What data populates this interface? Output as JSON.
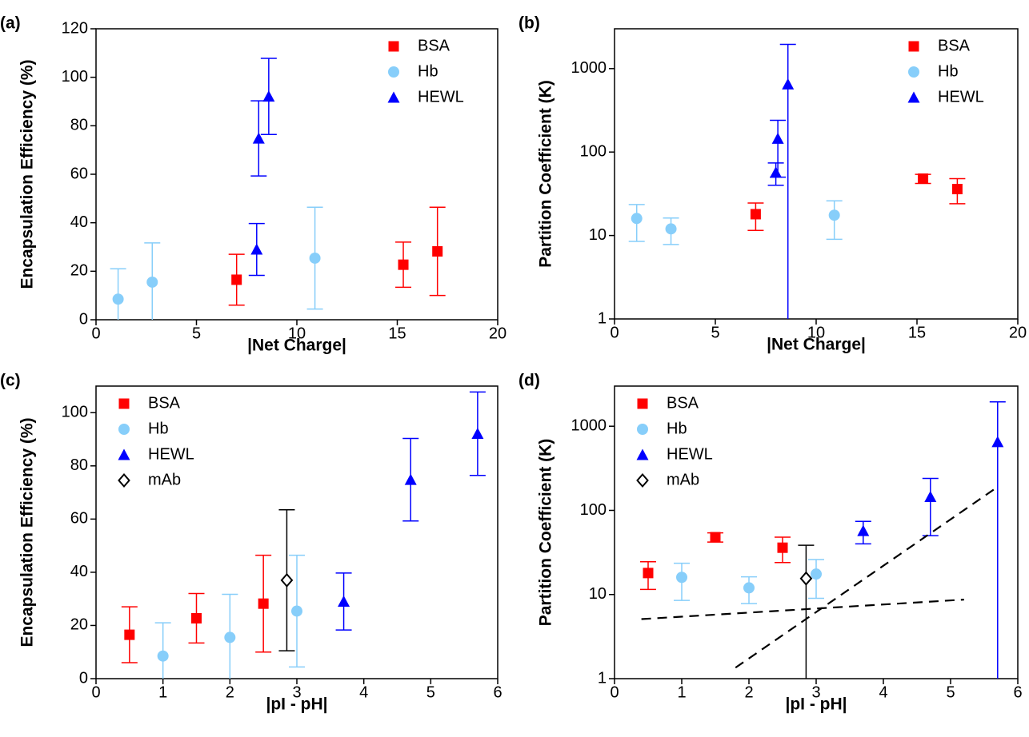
{
  "chart_data": [
    {
      "type": "scatter",
      "panel_label": "(a)",
      "x_label": "|Net Charge|",
      "y_label": "Encapsulation Efficiency (%)",
      "xlim": [
        0,
        20
      ],
      "xticks": [
        0,
        5,
        10,
        15,
        20
      ],
      "ylim": [
        0,
        120
      ],
      "yticks": [
        0,
        20,
        40,
        60,
        80,
        100,
        120
      ],
      "legend": "upper right",
      "series": [
        {
          "name": "BSA",
          "color": "#ff0000",
          "marker": "square",
          "x": [
            7.0,
            15.3,
            17.0
          ],
          "values": [
            16.5,
            22.7,
            28.2
          ],
          "errors": [
            10.5,
            9.3,
            18.2
          ]
        },
        {
          "name": "Hb",
          "color": "#87cefa",
          "marker": "circle",
          "x": [
            1.1,
            2.8,
            10.9
          ],
          "values": [
            8.5,
            15.5,
            25.4
          ],
          "errors": [
            12.5,
            16.2,
            21
          ]
        },
        {
          "name": "HEWL",
          "color": "#0000ff",
          "marker": "triangle",
          "x": [
            8.0,
            8.1,
            8.6
          ],
          "values": [
            29,
            74.8,
            92.1
          ],
          "errors": [
            10.7,
            15.5,
            15.7
          ]
        }
      ]
    },
    {
      "type": "scatter",
      "panel_label": "(b)",
      "x_label": "|Net Charge|",
      "y_label": "Partition Coefficient (K)",
      "xlim": [
        0,
        20
      ],
      "xticks": [
        0,
        5,
        10,
        15,
        20
      ],
      "ylim": [
        1,
        3000
      ],
      "yticks": [
        1,
        10,
        100,
        1000
      ],
      "log_y": true,
      "legend": "upper right",
      "series": [
        {
          "name": "BSA",
          "color": "#ff0000",
          "marker": "square",
          "x": [
            7.0,
            15.3,
            17.0
          ],
          "values": [
            18,
            48,
            36
          ],
          "errors": [
            6.5,
            6,
            12
          ]
        },
        {
          "name": "Hb",
          "color": "#87cefa",
          "marker": "circle",
          "x": [
            1.1,
            2.8,
            10.9
          ],
          "values": [
            16,
            12,
            17.5
          ],
          "errors": [
            7.5,
            4.2,
            8.5
          ]
        },
        {
          "name": "HEWL",
          "color": "#0000ff",
          "marker": "triangle",
          "x": [
            8.0,
            8.1,
            8.6
          ],
          "values": [
            57,
            145,
            650
          ],
          "errors": [
            17,
            95,
            1300
          ]
        }
      ]
    },
    {
      "type": "scatter",
      "panel_label": "(c)",
      "x_label": "|pI - pH|",
      "y_label": "Encapsulation Efficiency (%)",
      "xlim": [
        0,
        6
      ],
      "xticks": [
        0,
        1,
        2,
        3,
        4,
        5,
        6
      ],
      "ylim": [
        0,
        110
      ],
      "yticks": [
        0,
        20,
        40,
        60,
        80,
        100
      ],
      "legend": "upper left",
      "series": [
        {
          "name": "BSA",
          "color": "#ff0000",
          "marker": "square",
          "x": [
            0.5,
            1.5,
            2.5
          ],
          "values": [
            16.5,
            22.7,
            28.2
          ],
          "errors": [
            10.5,
            9.3,
            18.2
          ]
        },
        {
          "name": "Hb",
          "color": "#87cefa",
          "marker": "circle",
          "x": [
            1.0,
            2.0,
            3.0
          ],
          "values": [
            8.5,
            15.5,
            25.4
          ],
          "errors": [
            12.5,
            16.2,
            21
          ]
        },
        {
          "name": "HEWL",
          "color": "#0000ff",
          "marker": "triangle",
          "x": [
            3.7,
            4.7,
            5.7
          ],
          "values": [
            29,
            74.8,
            92.1
          ],
          "errors": [
            10.7,
            15.5,
            15.7
          ]
        },
        {
          "name": "mAb",
          "color": "#000000",
          "marker": "diamond",
          "x": [
            2.85
          ],
          "values": [
            37
          ],
          "errors": [
            26.5
          ]
        }
      ]
    },
    {
      "type": "scatter",
      "panel_label": "(d)",
      "x_label": "|pI - pH|",
      "y_label": "Partition Coefficient (K)",
      "xlim": [
        0,
        6
      ],
      "xticks": [
        0,
        1,
        2,
        3,
        4,
        5,
        6
      ],
      "ylim": [
        1,
        3000
      ],
      "yticks": [
        1,
        10,
        100,
        1000
      ],
      "log_y": true,
      "legend": "upper left",
      "series": [
        {
          "name": "BSA",
          "color": "#ff0000",
          "marker": "square",
          "x": [
            0.5,
            1.5,
            2.5
          ],
          "values": [
            18,
            48,
            36
          ],
          "errors": [
            6.5,
            6,
            12
          ]
        },
        {
          "name": "Hb",
          "color": "#87cefa",
          "marker": "circle",
          "x": [
            1.0,
            2.0,
            3.0
          ],
          "values": [
            16,
            12,
            17.5
          ],
          "errors": [
            7.5,
            4.2,
            8.5
          ]
        },
        {
          "name": "HEWL",
          "color": "#0000ff",
          "marker": "triangle",
          "x": [
            3.7,
            4.7,
            5.7
          ],
          "values": [
            57,
            145,
            650
          ],
          "errors": [
            17,
            95,
            1300
          ]
        },
        {
          "name": "mAb",
          "color": "#000000",
          "marker": "diamond",
          "x": [
            2.85
          ],
          "values": [
            15.5
          ],
          "errors": [
            23
          ]
        },
        {
          "color": "#000000",
          "marker": "dashed-line",
          "x": [
            0.4,
            5.2
          ],
          "values": [
            5.1,
            8.7
          ]
        },
        {
          "color": "#000000",
          "marker": "dashed-line",
          "x": [
            1.8,
            5.7
          ],
          "values": [
            1.35,
            190
          ]
        }
      ]
    }
  ]
}
